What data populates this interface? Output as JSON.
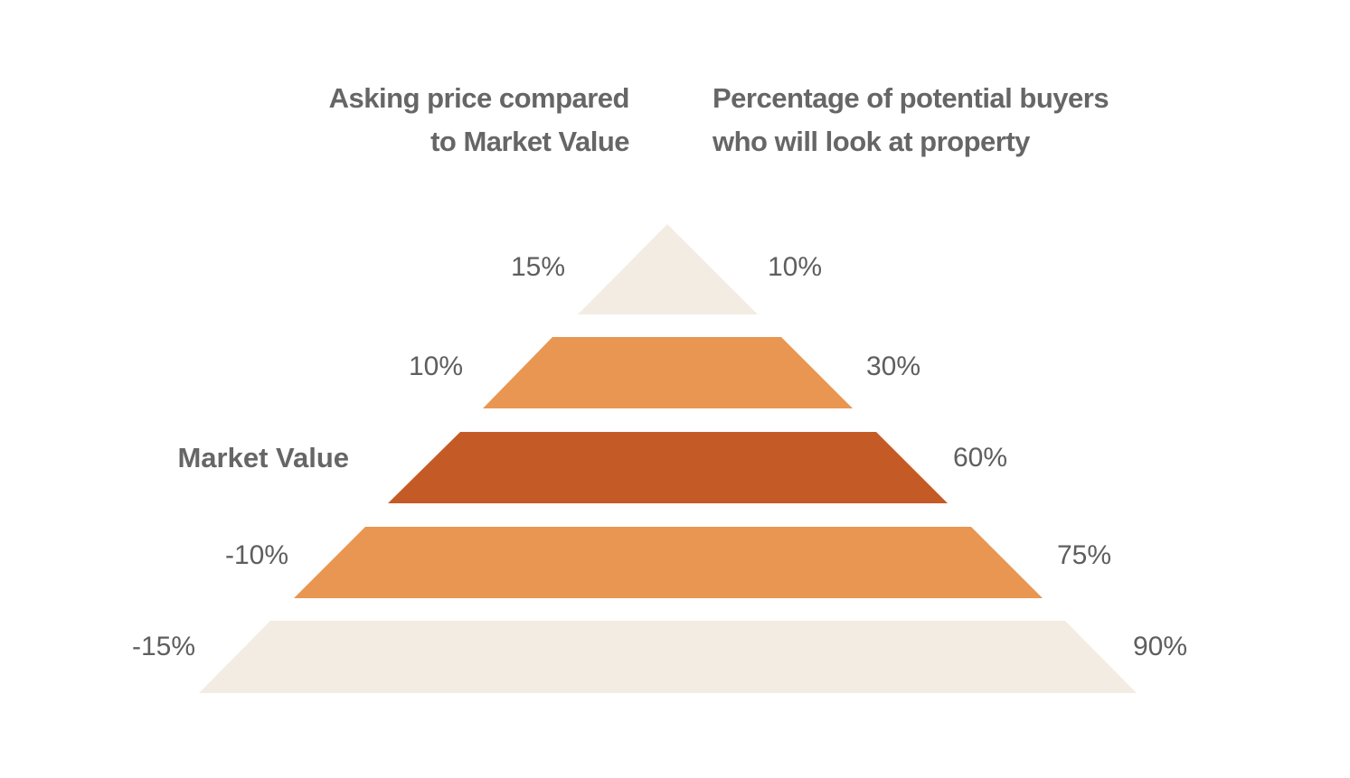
{
  "headers": {
    "left_line1": "Asking price compared",
    "left_line2": "to Market Value",
    "right_line1": "Percentage of potential buyers",
    "right_line2": "who will look at property"
  },
  "tiers": [
    {
      "price_label": "15%",
      "buyers_label": "10%",
      "color": "#F3ECE3",
      "highlight": false
    },
    {
      "price_label": "10%",
      "buyers_label": "30%",
      "color": "#E89651",
      "highlight": false
    },
    {
      "price_label": "Market Value",
      "buyers_label": "60%",
      "color": "#C45B26",
      "highlight": true
    },
    {
      "price_label": "-10%",
      "buyers_label": "75%",
      "color": "#E89651",
      "highlight": false
    },
    {
      "price_label": "-15%",
      "buyers_label": "90%",
      "color": "#F3ECE3",
      "highlight": false
    }
  ]
}
